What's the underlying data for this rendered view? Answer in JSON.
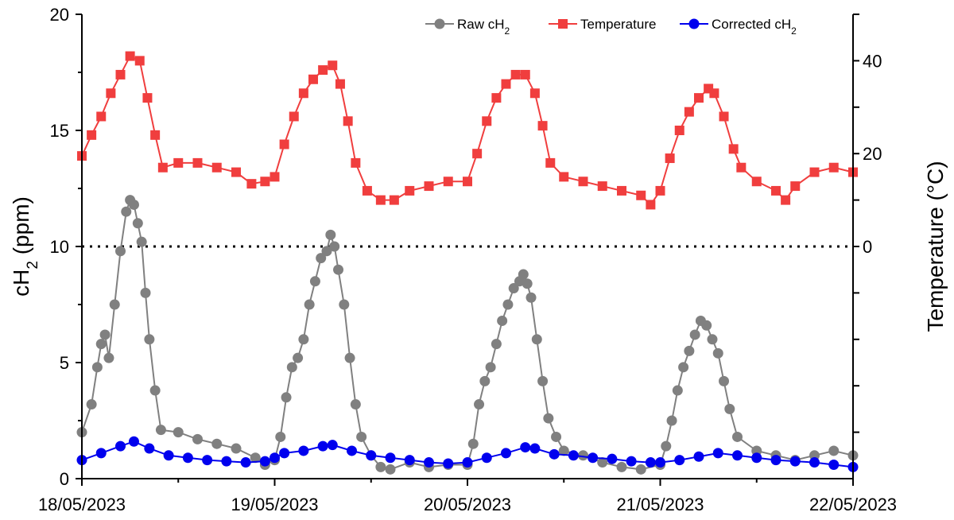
{
  "chart_data": {
    "type": "line",
    "title": "",
    "xlabel": "",
    "ylabel": "cH",
    "ylabel_sub": "2",
    "ylabel_unit": " (ppm)",
    "y2label": "Temperature (°C)",
    "x_ticks": [
      "18/05/2023",
      "19/05/2023",
      "20/05/2023",
      "21/05/2023",
      "22/05/2023"
    ],
    "x_range_days": [
      0,
      4
    ],
    "ylim": [
      0,
      20
    ],
    "y_ticks": [
      "0",
      "5",
      "10",
      "15",
      "20"
    ],
    "y2lim": [
      -50,
      50
    ],
    "y2_ticks": [
      "0",
      "20",
      "40"
    ],
    "reference_line": {
      "axis": "y2",
      "value": 0,
      "style": "dotted"
    },
    "grid": false,
    "legend_position": "top-right",
    "series": [
      {
        "name": "Raw cH",
        "name_sub": "2",
        "axis": "y",
        "marker": "circle",
        "color": "#808080",
        "points": [
          [
            0,
            2.0
          ],
          [
            0.05,
            3.2
          ],
          [
            0.08,
            4.8
          ],
          [
            0.1,
            5.8
          ],
          [
            0.12,
            6.2
          ],
          [
            0.14,
            5.2
          ],
          [
            0.17,
            7.5
          ],
          [
            0.2,
            9.8
          ],
          [
            0.23,
            11.5
          ],
          [
            0.25,
            12.0
          ],
          [
            0.27,
            11.8
          ],
          [
            0.29,
            11.0
          ],
          [
            0.31,
            10.2
          ],
          [
            0.33,
            8.0
          ],
          [
            0.35,
            6.0
          ],
          [
            0.38,
            3.8
          ],
          [
            0.41,
            2.1
          ],
          [
            0.5,
            2.0
          ],
          [
            0.6,
            1.7
          ],
          [
            0.7,
            1.5
          ],
          [
            0.8,
            1.3
          ],
          [
            0.9,
            0.9
          ],
          [
            0.95,
            0.6
          ],
          [
            1.0,
            0.8
          ],
          [
            1.03,
            1.8
          ],
          [
            1.06,
            3.5
          ],
          [
            1.09,
            4.8
          ],
          [
            1.12,
            5.2
          ],
          [
            1.15,
            6.0
          ],
          [
            1.18,
            7.5
          ],
          [
            1.21,
            8.5
          ],
          [
            1.24,
            9.5
          ],
          [
            1.27,
            9.8
          ],
          [
            1.29,
            10.5
          ],
          [
            1.31,
            10.0
          ],
          [
            1.33,
            9.0
          ],
          [
            1.36,
            7.5
          ],
          [
            1.39,
            5.2
          ],
          [
            1.42,
            3.2
          ],
          [
            1.45,
            1.8
          ],
          [
            1.5,
            1.0
          ],
          [
            1.55,
            0.5
          ],
          [
            1.6,
            0.4
          ],
          [
            1.7,
            0.7
          ],
          [
            1.8,
            0.5
          ],
          [
            1.9,
            0.6
          ],
          [
            2.0,
            0.6
          ],
          [
            2.03,
            1.5
          ],
          [
            2.06,
            3.2
          ],
          [
            2.09,
            4.2
          ],
          [
            2.12,
            4.8
          ],
          [
            2.15,
            5.8
          ],
          [
            2.18,
            6.8
          ],
          [
            2.21,
            7.5
          ],
          [
            2.24,
            8.2
          ],
          [
            2.27,
            8.5
          ],
          [
            2.29,
            8.8
          ],
          [
            2.31,
            8.4
          ],
          [
            2.33,
            7.8
          ],
          [
            2.36,
            6.0
          ],
          [
            2.39,
            4.2
          ],
          [
            2.42,
            2.6
          ],
          [
            2.46,
            1.8
          ],
          [
            2.5,
            1.2
          ],
          [
            2.6,
            1.0
          ],
          [
            2.7,
            0.7
          ],
          [
            2.8,
            0.5
          ],
          [
            2.9,
            0.4
          ],
          [
            3.0,
            0.6
          ],
          [
            3.03,
            1.4
          ],
          [
            3.06,
            2.5
          ],
          [
            3.09,
            3.8
          ],
          [
            3.12,
            4.8
          ],
          [
            3.15,
            5.5
          ],
          [
            3.18,
            6.2
          ],
          [
            3.21,
            6.8
          ],
          [
            3.24,
            6.6
          ],
          [
            3.27,
            6.0
          ],
          [
            3.3,
            5.4
          ],
          [
            3.33,
            4.2
          ],
          [
            3.36,
            3.0
          ],
          [
            3.4,
            1.8
          ],
          [
            3.5,
            1.2
          ],
          [
            3.6,
            1.0
          ],
          [
            3.7,
            0.8
          ],
          [
            3.8,
            1.0
          ],
          [
            3.9,
            1.2
          ],
          [
            4.0,
            1.0
          ]
        ]
      },
      {
        "name": "Temperature",
        "axis": "y2",
        "marker": "square",
        "color": "#f03e3e",
        "points": [
          [
            0,
            19.5
          ],
          [
            0.05,
            24
          ],
          [
            0.1,
            28
          ],
          [
            0.15,
            33
          ],
          [
            0.2,
            37
          ],
          [
            0.25,
            41
          ],
          [
            0.3,
            40
          ],
          [
            0.34,
            32
          ],
          [
            0.38,
            24
          ],
          [
            0.42,
            17
          ],
          [
            0.5,
            18
          ],
          [
            0.6,
            18
          ],
          [
            0.7,
            17
          ],
          [
            0.8,
            16
          ],
          [
            0.88,
            13.5
          ],
          [
            0.95,
            14
          ],
          [
            1.0,
            15
          ],
          [
            1.05,
            22
          ],
          [
            1.1,
            28
          ],
          [
            1.15,
            33
          ],
          [
            1.2,
            36
          ],
          [
            1.25,
            38
          ],
          [
            1.3,
            39
          ],
          [
            1.34,
            35
          ],
          [
            1.38,
            27
          ],
          [
            1.42,
            18
          ],
          [
            1.48,
            12
          ],
          [
            1.55,
            10
          ],
          [
            1.62,
            10
          ],
          [
            1.7,
            12
          ],
          [
            1.8,
            13
          ],
          [
            1.9,
            14
          ],
          [
            2.0,
            14
          ],
          [
            2.05,
            20
          ],
          [
            2.1,
            27
          ],
          [
            2.15,
            32
          ],
          [
            2.2,
            35
          ],
          [
            2.25,
            37
          ],
          [
            2.3,
            37
          ],
          [
            2.35,
            33
          ],
          [
            2.39,
            26
          ],
          [
            2.43,
            18
          ],
          [
            2.5,
            15
          ],
          [
            2.6,
            14
          ],
          [
            2.7,
            13
          ],
          [
            2.8,
            12
          ],
          [
            2.9,
            11
          ],
          [
            2.95,
            9
          ],
          [
            3.0,
            12
          ],
          [
            3.05,
            19
          ],
          [
            3.1,
            25
          ],
          [
            3.15,
            29
          ],
          [
            3.2,
            32
          ],
          [
            3.25,
            34
          ],
          [
            3.28,
            33
          ],
          [
            3.33,
            28
          ],
          [
            3.38,
            21
          ],
          [
            3.42,
            17
          ],
          [
            3.5,
            14
          ],
          [
            3.6,
            12
          ],
          [
            3.65,
            10
          ],
          [
            3.7,
            13
          ],
          [
            3.8,
            16
          ],
          [
            3.9,
            17
          ],
          [
            4.0,
            16
          ]
        ]
      },
      {
        "name": "Corrected cH",
        "name_sub": "2",
        "axis": "y",
        "marker": "circle",
        "color": "#0000ee",
        "points": [
          [
            0,
            0.8
          ],
          [
            0.1,
            1.1
          ],
          [
            0.2,
            1.4
          ],
          [
            0.27,
            1.6
          ],
          [
            0.35,
            1.3
          ],
          [
            0.45,
            1.0
          ],
          [
            0.55,
            0.9
          ],
          [
            0.65,
            0.8
          ],
          [
            0.75,
            0.75
          ],
          [
            0.85,
            0.7
          ],
          [
            0.95,
            0.75
          ],
          [
            1.0,
            0.9
          ],
          [
            1.05,
            1.1
          ],
          [
            1.15,
            1.2
          ],
          [
            1.25,
            1.4
          ],
          [
            1.3,
            1.45
          ],
          [
            1.4,
            1.2
          ],
          [
            1.5,
            1.0
          ],
          [
            1.6,
            0.9
          ],
          [
            1.7,
            0.8
          ],
          [
            1.8,
            0.7
          ],
          [
            1.9,
            0.65
          ],
          [
            2.0,
            0.7
          ],
          [
            2.1,
            0.9
          ],
          [
            2.2,
            1.1
          ],
          [
            2.3,
            1.35
          ],
          [
            2.35,
            1.3
          ],
          [
            2.45,
            1.05
          ],
          [
            2.55,
            1.0
          ],
          [
            2.65,
            0.9
          ],
          [
            2.75,
            0.85
          ],
          [
            2.85,
            0.75
          ],
          [
            2.95,
            0.7
          ],
          [
            3.0,
            0.7
          ],
          [
            3.1,
            0.8
          ],
          [
            3.2,
            0.95
          ],
          [
            3.3,
            1.1
          ],
          [
            3.4,
            1.0
          ],
          [
            3.5,
            0.9
          ],
          [
            3.6,
            0.8
          ],
          [
            3.7,
            0.75
          ],
          [
            3.8,
            0.7
          ],
          [
            3.9,
            0.6
          ],
          [
            4.0,
            0.5
          ]
        ]
      }
    ]
  }
}
